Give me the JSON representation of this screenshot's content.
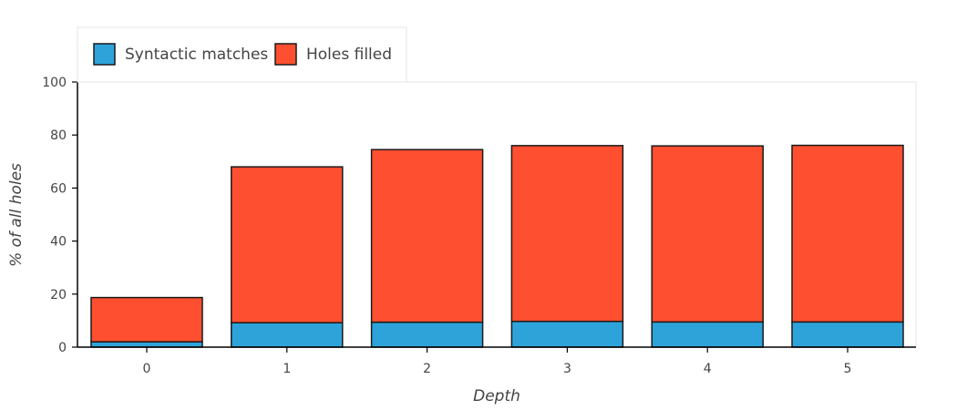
{
  "chart_data": {
    "type": "bar",
    "stacked": true,
    "title": "",
    "xlabel": "Depth",
    "ylabel": "% of all holes",
    "categories": [
      "0",
      "1",
      "2",
      "3",
      "4",
      "5"
    ],
    "series": [
      {
        "name": "Syntactic matches",
        "color": "#2ea3d9",
        "values": [
          2.0,
          9.2,
          9.4,
          9.7,
          9.5,
          9.5
        ]
      },
      {
        "name": "Holes filled",
        "color": "#fe4f30",
        "values": [
          16.7,
          58.8,
          65.1,
          66.3,
          66.4,
          66.6
        ]
      }
    ],
    "ylim": [
      0,
      100
    ],
    "yticks": [
      "0",
      "20",
      "40",
      "60",
      "80",
      "100"
    ],
    "grid": false,
    "legend_position": "top-left",
    "bar_edge_color": "#1a1a1a"
  }
}
